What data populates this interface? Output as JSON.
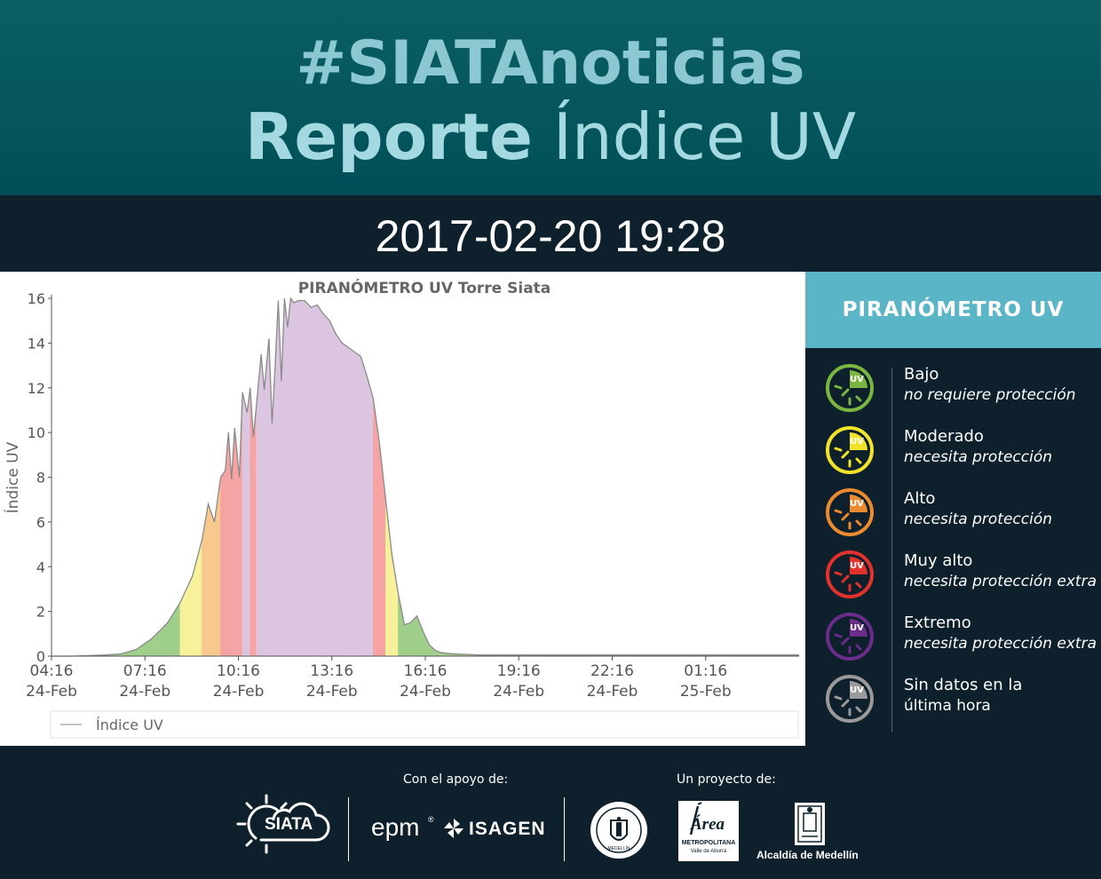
{
  "header": {
    "hashtag": "#SIATAnoticias",
    "title_bold": "Reporte",
    "title_light": "Índice UV"
  },
  "datetime": "2017-02-20 19:28",
  "colors": {
    "header_bg": "#005a5f",
    "dark_bg": "#0e202c",
    "legend_head_bg": "#5ab5c7",
    "uv_low": "#7ab640",
    "uv_moderate": "#f2e32a",
    "uv_high": "#ec8a2f",
    "uv_very_high": "#e2322b",
    "uv_extreme": "#6a2d8a",
    "uv_nodata": "#9a9a9a"
  },
  "legend": {
    "title": "PIRANÓMETRO UV",
    "items": [
      {
        "name": "Bajo",
        "desc": "no requiere protección",
        "color": "#7ab640",
        "icon": "uv-sun-icon"
      },
      {
        "name": "Moderado",
        "desc": "necesita protección",
        "color": "#f2e32a",
        "icon": "uv-sun-icon"
      },
      {
        "name": "Alto",
        "desc": "necesita protección",
        "color": "#ec8a2f",
        "icon": "uv-sun-icon"
      },
      {
        "name": "Muy alto",
        "desc": "necesita protección extra",
        "color": "#e2322b",
        "icon": "uv-sun-icon"
      },
      {
        "name": "Extremo",
        "desc": "necesita protección extra",
        "color": "#6a2d8a",
        "icon": "uv-sun-icon"
      },
      {
        "name": "Sin datos en la",
        "desc": "última hora",
        "color": "#9a9a9a",
        "icon": "uv-sun-icon"
      }
    ],
    "icon_text": "UV"
  },
  "chart_data": {
    "type": "area",
    "title": "PIRANÓMETRO UV Torre Siata",
    "ylabel": "Índice UV",
    "xlabel": "",
    "ylim": [
      0,
      16
    ],
    "yticks": [
      0,
      2,
      4,
      6,
      8,
      10,
      12,
      14,
      16
    ],
    "xlim_hours": [
      4.27,
      28.27
    ],
    "xticks": [
      {
        "h": 4.27,
        "time": "04:16",
        "date": "24-Feb"
      },
      {
        "h": 7.27,
        "time": "07:16",
        "date": "24-Feb"
      },
      {
        "h": 10.27,
        "time": "10:16",
        "date": "24-Feb"
      },
      {
        "h": 13.27,
        "time": "13:16",
        "date": "24-Feb"
      },
      {
        "h": 16.27,
        "time": "16:16",
        "date": "24-Feb"
      },
      {
        "h": 19.27,
        "time": "19:16",
        "date": "24-Feb"
      },
      {
        "h": 22.27,
        "time": "22:16",
        "date": "24-Feb"
      },
      {
        "h": 25.27,
        "time": "01:16",
        "date": "25-Feb"
      }
    ],
    "legend_entry": "Índice UV",
    "grid": false,
    "series": [
      {
        "name": "Índice UV",
        "hours": [
          4.27,
          5.0,
          6.0,
          6.5,
          7.0,
          7.5,
          8.0,
          8.4,
          8.8,
          9.1,
          9.3,
          9.5,
          9.7,
          9.85,
          9.95,
          10.05,
          10.15,
          10.3,
          10.4,
          10.55,
          10.65,
          10.75,
          10.85,
          11.0,
          11.1,
          11.25,
          11.35,
          11.45,
          11.55,
          11.65,
          11.75,
          11.85,
          11.95,
          12.05,
          12.2,
          12.4,
          12.6,
          12.8,
          13.0,
          13.2,
          13.4,
          13.6,
          13.8,
          14.0,
          14.2,
          14.4,
          14.6,
          14.8,
          15.0,
          15.2,
          15.4,
          15.6,
          15.8,
          16.0,
          16.2,
          16.4,
          16.6,
          16.8,
          17.2,
          18.0,
          20.0,
          24.0,
          28.27
        ],
        "values": [
          0.0,
          0.0,
          0.05,
          0.1,
          0.3,
          0.8,
          1.5,
          2.4,
          3.6,
          5.2,
          6.8,
          6.0,
          8.0,
          8.3,
          10.0,
          7.9,
          10.2,
          8.0,
          11.8,
          10.9,
          12.0,
          9.8,
          11.2,
          13.5,
          11.9,
          14.2,
          10.4,
          13.0,
          15.9,
          12.3,
          16.0,
          14.7,
          16.0,
          15.8,
          15.9,
          15.9,
          15.6,
          15.7,
          15.3,
          15.0,
          14.4,
          14.0,
          13.8,
          13.6,
          13.4,
          12.5,
          11.5,
          9.5,
          7.0,
          4.5,
          2.8,
          1.4,
          1.5,
          1.8,
          1.1,
          0.5,
          0.25,
          0.15,
          0.1,
          0.05,
          0.05,
          0.05,
          0.05
        ],
        "line_color": "#8a8a8a"
      }
    ],
    "uv_bands": [
      {
        "name": "Bajo",
        "from": 0,
        "to": 3,
        "fill": "#9fcf8a"
      },
      {
        "name": "Moderado",
        "from": 3,
        "to": 6,
        "fill": "#f6f19a"
      },
      {
        "name": "Alto",
        "from": 6,
        "to": 8,
        "fill": "#f7c98f"
      },
      {
        "name": "Muy alto",
        "from": 8,
        "to": 11,
        "fill": "#f5a3a3"
      },
      {
        "name": "Extremo",
        "from": 11,
        "to": 99,
        "fill": "#dcc5e0"
      }
    ]
  },
  "footer": {
    "support_label": "Con el apoyo de:",
    "project_label": "Un proyecto de:",
    "siata": "SIATA",
    "epm": "epm",
    "isagen": "ISAGEN",
    "area_main": "Área",
    "area_sub1": "METROPOLITANA",
    "area_sub2": "Valle de Aburrá",
    "alcaldia": "Alcaldía de Medellín",
    "medellin_seal": "MEDELLÍN"
  }
}
